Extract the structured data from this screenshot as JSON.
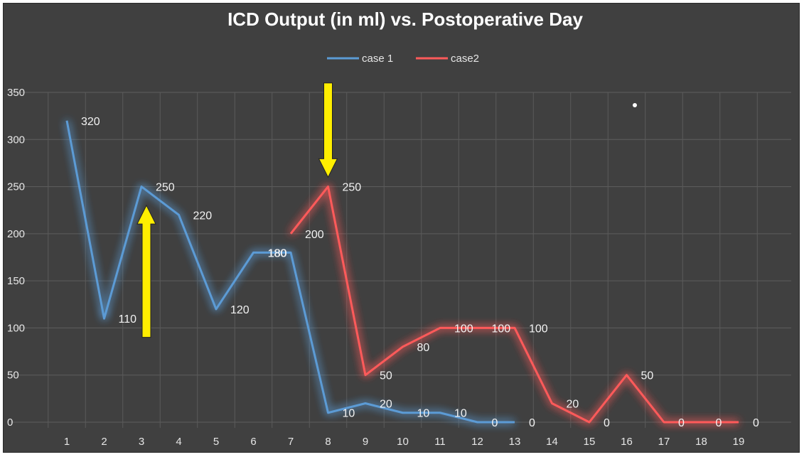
{
  "chart_data": {
    "type": "line",
    "title": "ICD Output (in ml) vs. Postoperative Day",
    "xlabel": "",
    "ylabel": "",
    "categories": [
      "1",
      "2",
      "3",
      "4",
      "5",
      "6",
      "7",
      "8",
      "9",
      "10",
      "11",
      "12",
      "13",
      "14",
      "15",
      "16",
      "17",
      "18",
      "19"
    ],
    "ylim": [
      0,
      350
    ],
    "yticks": [
      0,
      50,
      100,
      150,
      200,
      250,
      300,
      350
    ],
    "grid": true,
    "legend_position": "top",
    "series": [
      {
        "name": "case 1",
        "color": "#5b9bd5",
        "x": [
          1,
          2,
          3,
          4,
          5,
          6,
          7,
          8,
          9,
          10,
          11,
          12,
          13
        ],
        "values": [
          320,
          110,
          250,
          220,
          120,
          180,
          180,
          10,
          20,
          10,
          10,
          0,
          0
        ],
        "labels": [
          "320",
          "110",
          "250",
          "220",
          "120",
          "180",
          "",
          "10",
          "20",
          "10",
          "10",
          "0",
          "0"
        ]
      },
      {
        "name": "case2",
        "color": "#ff5a5a",
        "x": [
          7,
          8,
          9,
          10,
          11,
          12,
          13,
          14,
          15,
          16,
          17,
          18,
          19
        ],
        "values": [
          200,
          250,
          50,
          80,
          100,
          100,
          100,
          20,
          0,
          50,
          0,
          0,
          0
        ],
        "labels": [
          "200",
          "250",
          "50",
          "80",
          "100",
          "100",
          "100",
          "20",
          "0",
          "50",
          "0",
          "0",
          "0"
        ]
      }
    ],
    "extra_labels": [
      "180"
    ],
    "arrows": [
      {
        "x": 3,
        "direction": "up",
        "from_value": 90,
        "to_value": 230,
        "color": "#ffee00"
      },
      {
        "x": 8,
        "direction": "down",
        "from_value": 360,
        "to_value": 260,
        "color": "#ffee00"
      }
    ]
  }
}
